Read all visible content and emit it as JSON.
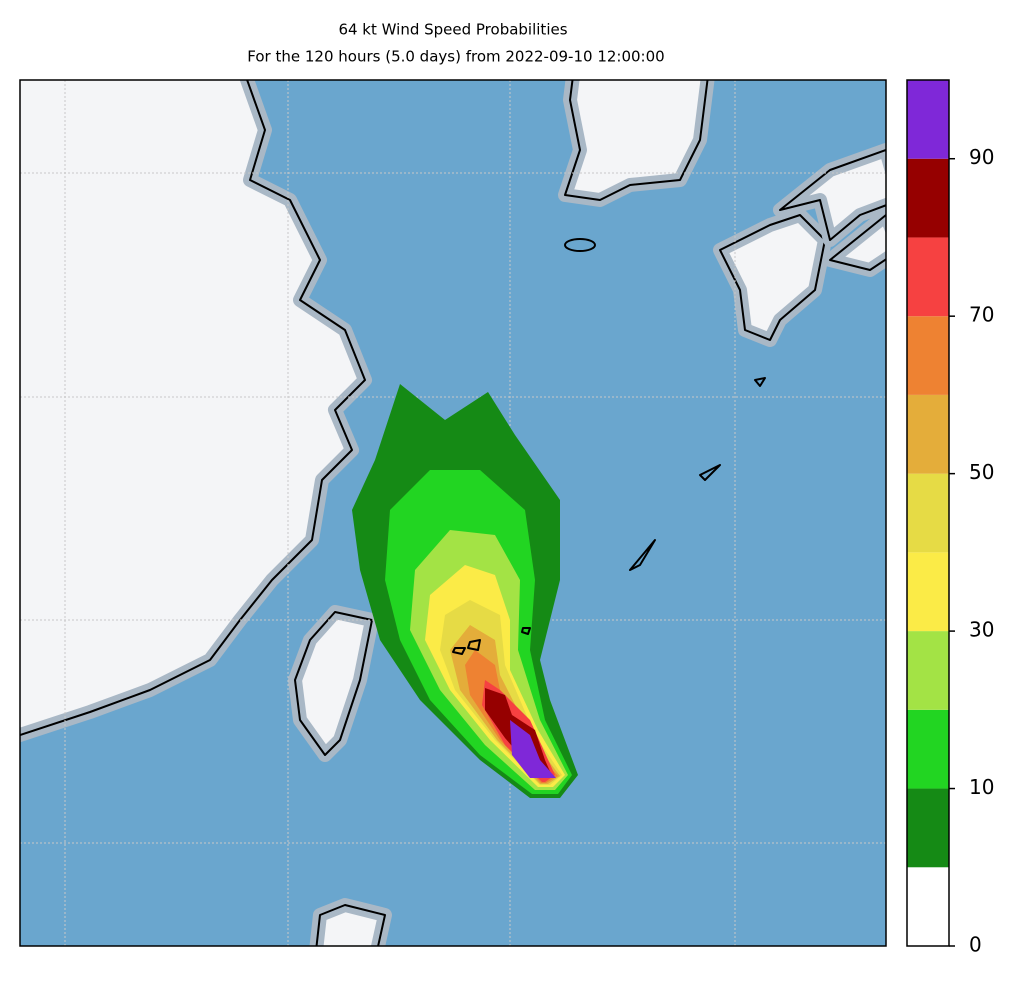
{
  "title": "64 kt Wind Speed Probabilities",
  "subtitle": "For the 120 hours (5.0 days) from 2022-09-10 12:00:00",
  "colorbar": {
    "levels": [
      0,
      5,
      10,
      20,
      30,
      40,
      50,
      60,
      70,
      80,
      90,
      100
    ],
    "colors": [
      "#ffffff",
      "#158a15",
      "#22d522",
      "#a3e345",
      "#fbeb47",
      "#e6db45",
      "#e4ad3a",
      "#ee8232",
      "#f64141",
      "#960000",
      "#7f28d8"
    ],
    "ticks": [
      0,
      10,
      30,
      50,
      70,
      90
    ]
  }
}
